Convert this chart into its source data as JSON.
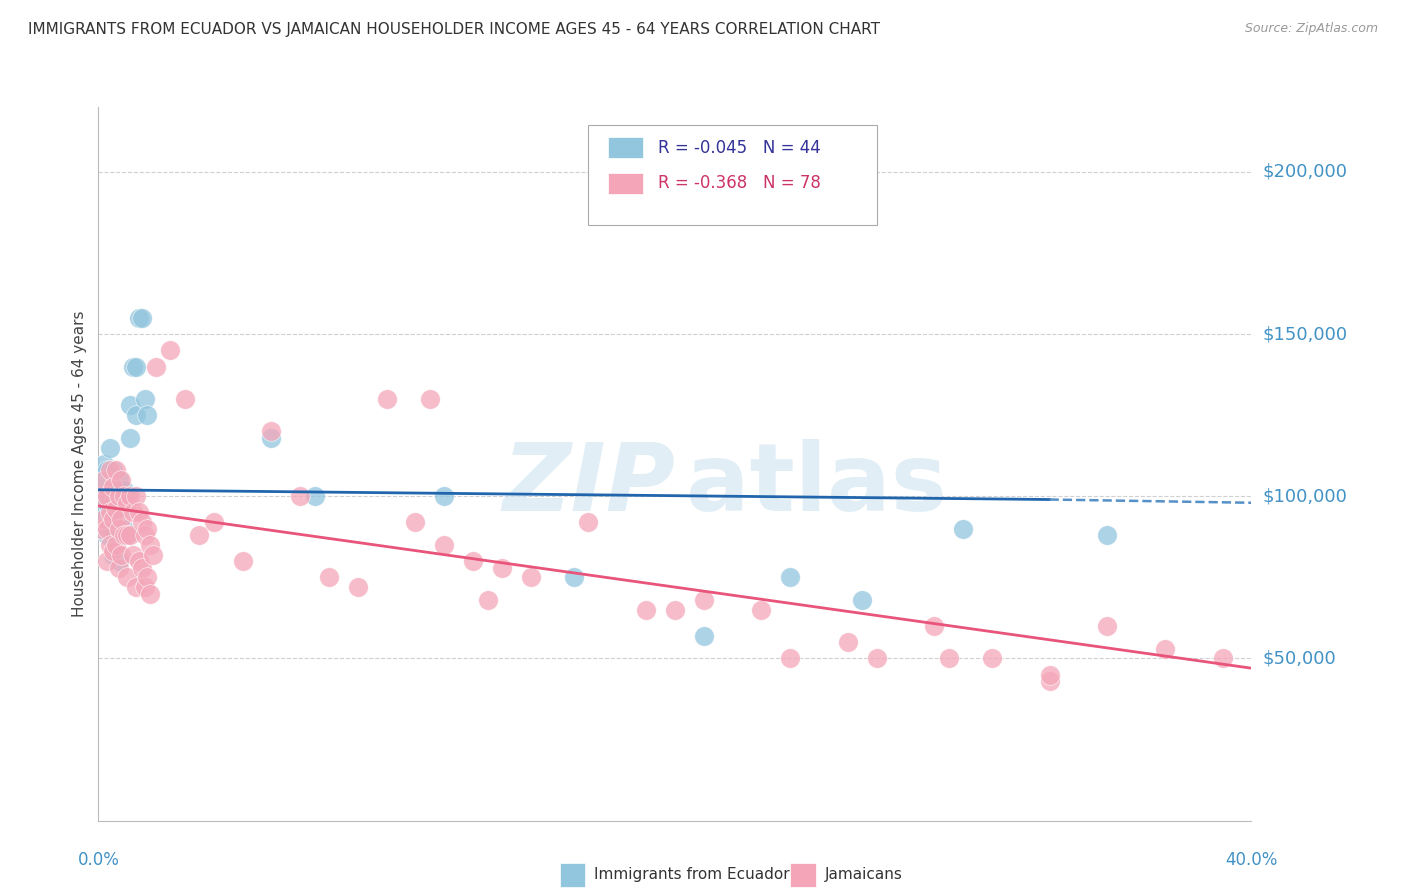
{
  "title": "IMMIGRANTS FROM ECUADOR VS JAMAICAN HOUSEHOLDER INCOME AGES 45 - 64 YEARS CORRELATION CHART",
  "source": "Source: ZipAtlas.com",
  "ylabel": "Householder Income Ages 45 - 64 years",
  "ytick_labels": [
    "$50,000",
    "$100,000",
    "$150,000",
    "$200,000"
  ],
  "ytick_values": [
    50000,
    100000,
    150000,
    200000
  ],
  "ylim": [
    0,
    220000
  ],
  "xlim": [
    0.0,
    0.4
  ],
  "legend_ecuador_R": "R = -0.045",
  "legend_ecuador_N": "N = 44",
  "legend_jamaica_R": "R = -0.368",
  "legend_jamaica_N": "N = 78",
  "ecuador_color": "#92c5de",
  "ecuador_edge": "#92c5de",
  "jamaica_color": "#f4a6b8",
  "jamaica_edge": "#f4a6b8",
  "ecuador_line_color": "#2166ac",
  "ecuador_dash_color": "#5590c8",
  "jamaica_line_color": "#e8547a",
  "axis_label_color": "#4292c6",
  "title_color": "#333333",
  "ecuador_points_x": [
    0.001,
    0.001,
    0.002,
    0.002,
    0.003,
    0.003,
    0.003,
    0.004,
    0.004,
    0.004,
    0.005,
    0.005,
    0.005,
    0.005,
    0.006,
    0.006,
    0.006,
    0.007,
    0.007,
    0.007,
    0.008,
    0.008,
    0.009,
    0.009,
    0.01,
    0.01,
    0.011,
    0.011,
    0.012,
    0.013,
    0.013,
    0.014,
    0.015,
    0.016,
    0.017,
    0.06,
    0.075,
    0.12,
    0.165,
    0.21,
    0.24,
    0.265,
    0.3,
    0.35
  ],
  "ecuador_points_y": [
    105000,
    95000,
    110000,
    100000,
    108000,
    98000,
    88000,
    115000,
    100000,
    90000,
    108000,
    98000,
    90000,
    82000,
    102000,
    95000,
    85000,
    105000,
    98000,
    80000,
    100000,
    88000,
    102000,
    90000,
    100000,
    88000,
    128000,
    118000,
    140000,
    140000,
    125000,
    155000,
    155000,
    130000,
    125000,
    118000,
    100000,
    100000,
    75000,
    57000,
    75000,
    68000,
    90000,
    88000
  ],
  "jamaica_points_x": [
    0.001,
    0.001,
    0.002,
    0.002,
    0.003,
    0.003,
    0.003,
    0.004,
    0.004,
    0.004,
    0.005,
    0.005,
    0.005,
    0.006,
    0.006,
    0.006,
    0.007,
    0.007,
    0.007,
    0.008,
    0.008,
    0.008,
    0.009,
    0.009,
    0.01,
    0.01,
    0.01,
    0.011,
    0.011,
    0.012,
    0.012,
    0.013,
    0.013,
    0.014,
    0.014,
    0.015,
    0.015,
    0.016,
    0.016,
    0.017,
    0.017,
    0.018,
    0.018,
    0.019,
    0.02,
    0.025,
    0.03,
    0.035,
    0.04,
    0.05,
    0.06,
    0.07,
    0.08,
    0.09,
    0.1,
    0.11,
    0.12,
    0.13,
    0.14,
    0.15,
    0.17,
    0.19,
    0.21,
    0.23,
    0.24,
    0.27,
    0.29,
    0.31,
    0.33,
    0.35,
    0.37,
    0.39,
    0.115,
    0.135,
    0.2,
    0.26,
    0.295,
    0.33
  ],
  "jamaica_points_y": [
    100000,
    90000,
    105000,
    93000,
    100000,
    90000,
    80000,
    108000,
    95000,
    85000,
    103000,
    93000,
    83000,
    108000,
    96000,
    85000,
    100000,
    90000,
    78000,
    105000,
    93000,
    82000,
    100000,
    88000,
    98000,
    88000,
    75000,
    100000,
    88000,
    95000,
    82000,
    100000,
    72000,
    95000,
    80000,
    92000,
    78000,
    88000,
    72000,
    90000,
    75000,
    85000,
    70000,
    82000,
    140000,
    145000,
    130000,
    88000,
    92000,
    80000,
    120000,
    100000,
    75000,
    72000,
    130000,
    92000,
    85000,
    80000,
    78000,
    75000,
    92000,
    65000,
    68000,
    65000,
    50000,
    50000,
    60000,
    50000,
    43000,
    60000,
    53000,
    50000,
    130000,
    68000,
    65000,
    55000,
    50000,
    45000
  ],
  "ecuador_line_x0": 0.0,
  "ecuador_line_x1": 0.33,
  "ecuador_line_xd0": 0.33,
  "ecuador_line_xd1": 0.4,
  "ecuador_line_y0": 102000,
  "ecuador_line_y1": 99000,
  "ecuador_line_yd0": 99000,
  "ecuador_line_yd1": 98000,
  "jamaica_line_x0": 0.0,
  "jamaica_line_x1": 0.4,
  "jamaica_line_y0": 97000,
  "jamaica_line_y1": 47000,
  "grid_color": "#d0d0d0",
  "background_color": "#ffffff"
}
